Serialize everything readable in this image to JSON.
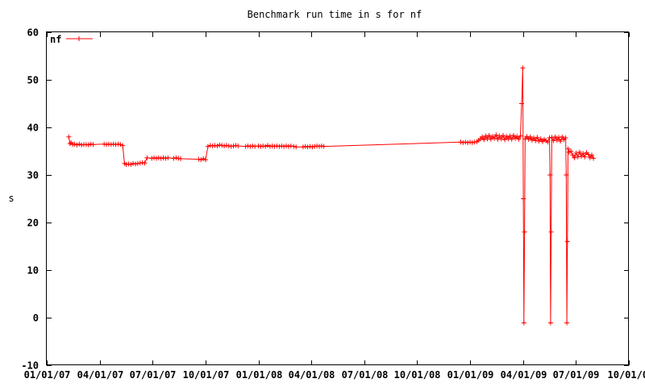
{
  "chart_data": {
    "type": "line",
    "title": "Benchmark run time in s for nf",
    "xlabel": "",
    "ylabel": "s",
    "ylim": [
      -10,
      60
    ],
    "xlim": [
      "2007-01-01",
      "2009-10-01"
    ],
    "y_ticks": [
      "-10",
      "0",
      "10",
      "20",
      "30",
      "40",
      "50",
      "60"
    ],
    "x_ticks": [
      "01/01/07",
      "04/01/07",
      "07/01/07",
      "10/01/07",
      "01/01/08",
      "04/01/08",
      "07/01/08",
      "10/01/08",
      "01/01/09",
      "04/01/09",
      "07/01/09",
      "10/01/0"
    ],
    "grid": false,
    "legend": "top-left",
    "series": [
      {
        "name": "nf",
        "color": "#ff0000",
        "marker": "plus",
        "points": [
          [
            "2007-02-08",
            38.0
          ],
          [
            "2007-02-10",
            36.6
          ],
          [
            "2007-02-12",
            36.8
          ],
          [
            "2007-02-15",
            36.4
          ],
          [
            "2007-02-18",
            36.5
          ],
          [
            "2007-02-22",
            36.3
          ],
          [
            "2007-02-26",
            36.5
          ],
          [
            "2007-03-02",
            36.3
          ],
          [
            "2007-03-06",
            36.4
          ],
          [
            "2007-03-10",
            36.4
          ],
          [
            "2007-03-14",
            36.3
          ],
          [
            "2007-03-18",
            36.5
          ],
          [
            "2007-03-22",
            36.4
          ],
          [
            "2007-04-10",
            36.5
          ],
          [
            "2007-04-14",
            36.4
          ],
          [
            "2007-04-18",
            36.5
          ],
          [
            "2007-04-22",
            36.4
          ],
          [
            "2007-04-26",
            36.5
          ],
          [
            "2007-04-30",
            36.4
          ],
          [
            "2007-05-04",
            36.5
          ],
          [
            "2007-05-08",
            36.4
          ],
          [
            "2007-05-12",
            36.2
          ],
          [
            "2007-05-15",
            32.4
          ],
          [
            "2007-05-18",
            32.2
          ],
          [
            "2007-05-22",
            32.3
          ],
          [
            "2007-05-26",
            32.2
          ],
          [
            "2007-05-30",
            32.4
          ],
          [
            "2007-06-03",
            32.3
          ],
          [
            "2007-06-07",
            32.4
          ],
          [
            "2007-06-11",
            32.5
          ],
          [
            "2007-06-15",
            32.6
          ],
          [
            "2007-06-19",
            32.5
          ],
          [
            "2007-06-23",
            33.6
          ],
          [
            "2007-07-01",
            33.5
          ],
          [
            "2007-07-05",
            33.6
          ],
          [
            "2007-07-09",
            33.5
          ],
          [
            "2007-07-13",
            33.6
          ],
          [
            "2007-07-17",
            33.5
          ],
          [
            "2007-07-21",
            33.6
          ],
          [
            "2007-07-25",
            33.5
          ],
          [
            "2007-07-29",
            33.6
          ],
          [
            "2007-08-08",
            33.5
          ],
          [
            "2007-08-12",
            33.6
          ],
          [
            "2007-08-16",
            33.5
          ],
          [
            "2007-08-20",
            33.4
          ],
          [
            "2007-09-20",
            33.3
          ],
          [
            "2007-09-24",
            33.2
          ],
          [
            "2007-09-28",
            33.4
          ],
          [
            "2007-10-02",
            33.2
          ],
          [
            "2007-10-06",
            36.0
          ],
          [
            "2007-10-10",
            36.2
          ],
          [
            "2007-10-14",
            36.1
          ],
          [
            "2007-10-18",
            36.2
          ],
          [
            "2007-10-22",
            36.1
          ],
          [
            "2007-10-26",
            36.3
          ],
          [
            "2007-10-30",
            36.2
          ],
          [
            "2007-11-03",
            36.1
          ],
          [
            "2007-11-07",
            36.2
          ],
          [
            "2007-11-11",
            36.1
          ],
          [
            "2007-11-15",
            36.0
          ],
          [
            "2007-11-19",
            36.1
          ],
          [
            "2007-11-23",
            36.2
          ],
          [
            "2007-11-27",
            36.1
          ],
          [
            "2007-12-10",
            36.0
          ],
          [
            "2007-12-14",
            36.1
          ],
          [
            "2007-12-18",
            36.0
          ],
          [
            "2007-12-22",
            36.1
          ],
          [
            "2007-12-26",
            36.0
          ],
          [
            "2008-01-01",
            36.1
          ],
          [
            "2008-01-05",
            36.0
          ],
          [
            "2008-01-09",
            36.1
          ],
          [
            "2008-01-13",
            36.0
          ],
          [
            "2008-01-17",
            36.2
          ],
          [
            "2008-01-21",
            36.0
          ],
          [
            "2008-01-25",
            36.1
          ],
          [
            "2008-01-29",
            36.0
          ],
          [
            "2008-02-02",
            36.1
          ],
          [
            "2008-02-06",
            36.0
          ],
          [
            "2008-02-10",
            36.1
          ],
          [
            "2008-02-14",
            36.0
          ],
          [
            "2008-02-18",
            36.1
          ],
          [
            "2008-02-22",
            36.0
          ],
          [
            "2008-02-26",
            36.1
          ],
          [
            "2008-03-02",
            36.0
          ],
          [
            "2008-03-06",
            35.9
          ],
          [
            "2008-03-18",
            35.9
          ],
          [
            "2008-03-22",
            36.0
          ],
          [
            "2008-03-26",
            35.9
          ],
          [
            "2008-03-30",
            36.0
          ],
          [
            "2008-04-03",
            35.9
          ],
          [
            "2008-04-07",
            36.0
          ],
          [
            "2008-04-11",
            36.1
          ],
          [
            "2008-04-15",
            36.0
          ],
          [
            "2008-04-19",
            36.1
          ],
          [
            "2008-04-23",
            36.0
          ],
          [
            "2008-12-15",
            36.9
          ],
          [
            "2008-12-19",
            36.8
          ],
          [
            "2008-12-23",
            36.9
          ],
          [
            "2008-12-27",
            36.8
          ],
          [
            "2008-12-31",
            36.9
          ],
          [
            "2009-01-04",
            36.8
          ],
          [
            "2009-01-08",
            36.9
          ],
          [
            "2009-01-12",
            37.0
          ],
          [
            "2009-01-15",
            37.3
          ],
          [
            "2009-01-18",
            37.6
          ],
          [
            "2009-01-21",
            38.0
          ],
          [
            "2009-01-24",
            37.4
          ],
          [
            "2009-01-27",
            38.2
          ],
          [
            "2009-01-30",
            37.6
          ],
          [
            "2009-02-02",
            38.3
          ],
          [
            "2009-02-05",
            37.5
          ],
          [
            "2009-02-08",
            38.1
          ],
          [
            "2009-02-11",
            37.7
          ],
          [
            "2009-02-14",
            38.4
          ],
          [
            "2009-02-17",
            37.5
          ],
          [
            "2009-02-20",
            38.2
          ],
          [
            "2009-02-23",
            37.6
          ],
          [
            "2009-02-26",
            38.3
          ],
          [
            "2009-03-01",
            37.4
          ],
          [
            "2009-03-04",
            38.1
          ],
          [
            "2009-03-07",
            37.6
          ],
          [
            "2009-03-10",
            38.2
          ],
          [
            "2009-03-13",
            37.5
          ],
          [
            "2009-03-16",
            38.3
          ],
          [
            "2009-03-19",
            37.7
          ],
          [
            "2009-03-22",
            38.1
          ],
          [
            "2009-03-25",
            37.5
          ],
          [
            "2009-03-28",
            38.2
          ],
          [
            "2009-03-30",
            45.0
          ],
          [
            "2009-04-01",
            52.5
          ],
          [
            "2009-04-02",
            25.0
          ],
          [
            "2009-04-03",
            -1.1
          ],
          [
            "2009-04-04",
            18.0
          ],
          [
            "2009-04-05",
            37.6
          ],
          [
            "2009-04-08",
            38.1
          ],
          [
            "2009-04-11",
            37.5
          ],
          [
            "2009-04-14",
            38.0
          ],
          [
            "2009-04-17",
            37.3
          ],
          [
            "2009-04-20",
            37.8
          ],
          [
            "2009-04-23",
            37.2
          ],
          [
            "2009-04-26",
            37.9
          ],
          [
            "2009-04-29",
            37.1
          ],
          [
            "2009-05-02",
            37.6
          ],
          [
            "2009-05-05",
            37.0
          ],
          [
            "2009-05-08",
            37.5
          ],
          [
            "2009-05-11",
            37.2
          ],
          [
            "2009-05-14",
            36.9
          ],
          [
            "2009-05-17",
            37.8
          ],
          [
            "2009-05-18",
            30.0
          ],
          [
            "2009-05-19",
            -1.1
          ],
          [
            "2009-05-20",
            18.0
          ],
          [
            "2009-05-21",
            37.9
          ],
          [
            "2009-05-24",
            37.2
          ],
          [
            "2009-05-27",
            38.0
          ],
          [
            "2009-05-30",
            37.3
          ],
          [
            "2009-06-02",
            37.9
          ],
          [
            "2009-06-05",
            37.1
          ],
          [
            "2009-06-08",
            38.0
          ],
          [
            "2009-06-11",
            37.4
          ],
          [
            "2009-06-14",
            37.8
          ],
          [
            "2009-06-15",
            30.0
          ],
          [
            "2009-06-16",
            -1.1
          ],
          [
            "2009-06-17",
            16.0
          ],
          [
            "2009-06-18",
            35.5
          ],
          [
            "2009-06-20",
            34.8
          ],
          [
            "2009-06-23",
            35.0
          ],
          [
            "2009-06-26",
            34.2
          ],
          [
            "2009-06-29",
            33.6
          ],
          [
            "2009-07-02",
            34.6
          ],
          [
            "2009-07-05",
            33.8
          ],
          [
            "2009-07-08",
            34.8
          ],
          [
            "2009-07-11",
            33.9
          ],
          [
            "2009-07-14",
            34.5
          ],
          [
            "2009-07-17",
            33.8
          ],
          [
            "2009-07-20",
            34.7
          ],
          [
            "2009-07-23",
            34.3
          ],
          [
            "2009-07-26",
            33.6
          ],
          [
            "2009-07-29",
            34.2
          ],
          [
            "2009-08-01",
            33.5
          ]
        ]
      }
    ]
  }
}
